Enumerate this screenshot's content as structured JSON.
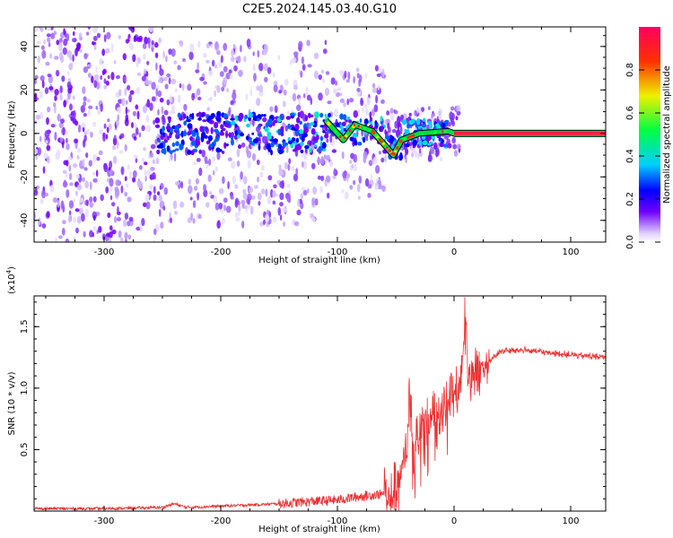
{
  "title": "C2E5.2024.145.03.40.G10",
  "chart_data": [
    {
      "type": "heatmap",
      "xlabel": "Height of straight line (km)",
      "ylabel": "Frequency (Hz)",
      "xlim": [
        -360,
        130
      ],
      "ylim": [
        -50,
        49
      ],
      "xticks": [
        -300,
        -200,
        -100,
        0,
        100
      ],
      "yticks": [
        -40,
        -20,
        0,
        20,
        40
      ],
      "colorbar": {
        "label": "Normalized spectral amplitude",
        "range": [
          0,
          1
        ],
        "ticks": [
          0.0,
          0.2,
          0.4,
          0.6,
          0.8
        ],
        "colors": [
          "#d8c8ff",
          "#7000ff",
          "#0000ff",
          "#00d0ff",
          "#00ff40",
          "#f0f000",
          "#ff3000",
          "#ff0060"
        ]
      },
      "signal_track": [
        {
          "x": -110,
          "y": 6
        },
        {
          "x": -95,
          "y": -3
        },
        {
          "x": -85,
          "y": 4
        },
        {
          "x": -70,
          "y": 1
        },
        {
          "x": -60,
          "y": -5
        },
        {
          "x": -52,
          "y": -10
        },
        {
          "x": -45,
          "y": -3
        },
        {
          "x": -30,
          "y": 0
        },
        {
          "x": -5,
          "y": 1
        },
        {
          "x": 0,
          "y": 0
        },
        {
          "x": 130,
          "y": 0
        }
      ]
    },
    {
      "type": "line",
      "xlabel": "Height of straight line (km)",
      "ylabel": "SNR (10 * v/v)",
      "yscale_label": "(x10",
      "yscale_exponent": "4",
      "xlim": [
        -360,
        130
      ],
      "ylim": [
        0,
        1.75
      ],
      "xticks": [
        -300,
        -200,
        -100,
        0,
        100
      ],
      "yticks": [
        0.5,
        1.0,
        1.5
      ],
      "ytick_labels": [
        "0.5",
        "1.0",
        "1.5"
      ],
      "grid": false,
      "color": "#ee3030",
      "series": [
        {
          "x": [
            -360,
            -300,
            -250,
            -240,
            -230,
            -200,
            -150,
            -120,
            -100,
            -80,
            -60,
            -50,
            -45,
            -40,
            -38,
            -35,
            -30,
            -20,
            -10,
            0,
            5,
            10,
            12,
            20,
            30,
            40,
            60,
            80,
            100,
            130
          ],
          "y": [
            0.02,
            0.02,
            0.03,
            0.06,
            0.03,
            0.04,
            0.06,
            0.08,
            0.09,
            0.12,
            0.14,
            0.2,
            0.3,
            0.55,
            1.05,
            0.45,
            0.62,
            0.75,
            0.85,
            0.95,
            1.0,
            1.7,
            1.1,
            1.12,
            1.22,
            1.3,
            1.31,
            1.29,
            1.27,
            1.25
          ]
        }
      ]
    }
  ]
}
